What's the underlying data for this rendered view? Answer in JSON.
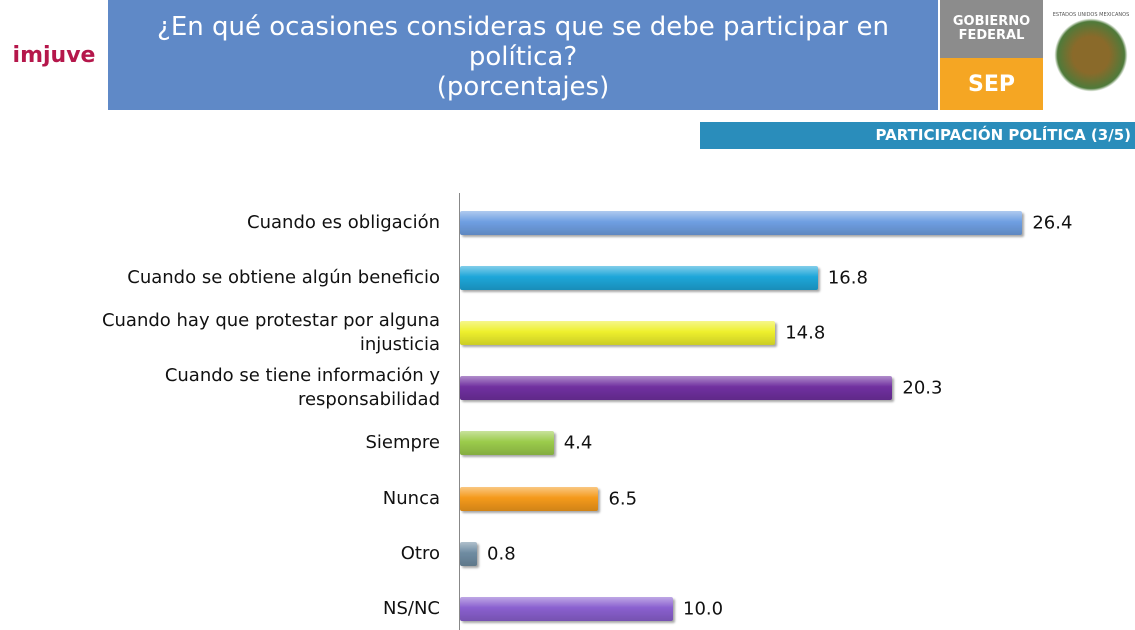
{
  "header": {
    "logo": "imjuve",
    "government": "GOBIERNO FEDERAL",
    "ministry": "SEP",
    "seal": "ESTADOS UNIDOS MEXICANOS",
    "section": "PARTICIPACIÓN POLÍTICA (3/5)"
  },
  "chart_data": {
    "type": "bar",
    "orientation": "horizontal",
    "title": "¿En qué ocasiones consideras que se debe participar en política?",
    "subtitle": "(porcentajes)",
    "categories": [
      "Cuando es obligación",
      "Cuando se obtiene algún beneficio",
      "Cuando hay que protestar por alguna injusticia",
      "Cuando se tiene información y responsabilidad",
      "Siempre",
      "Nunca",
      "Otro",
      "NS/NC"
    ],
    "values": [
      26.4,
      16.8,
      14.8,
      20.3,
      4.4,
      6.5,
      0.8,
      10.0
    ],
    "value_labels": [
      "26.4",
      "16.8",
      "14.8",
      "20.3",
      "4.4",
      "6.5",
      "0.8",
      "10.0"
    ],
    "colors": [
      "#6f9fe2",
      "#1da6d9",
      "#eef02c",
      "#7030a0",
      "#9bcb4b",
      "#f59a1b",
      "#6f8ca2",
      "#8a60cf"
    ]
  }
}
